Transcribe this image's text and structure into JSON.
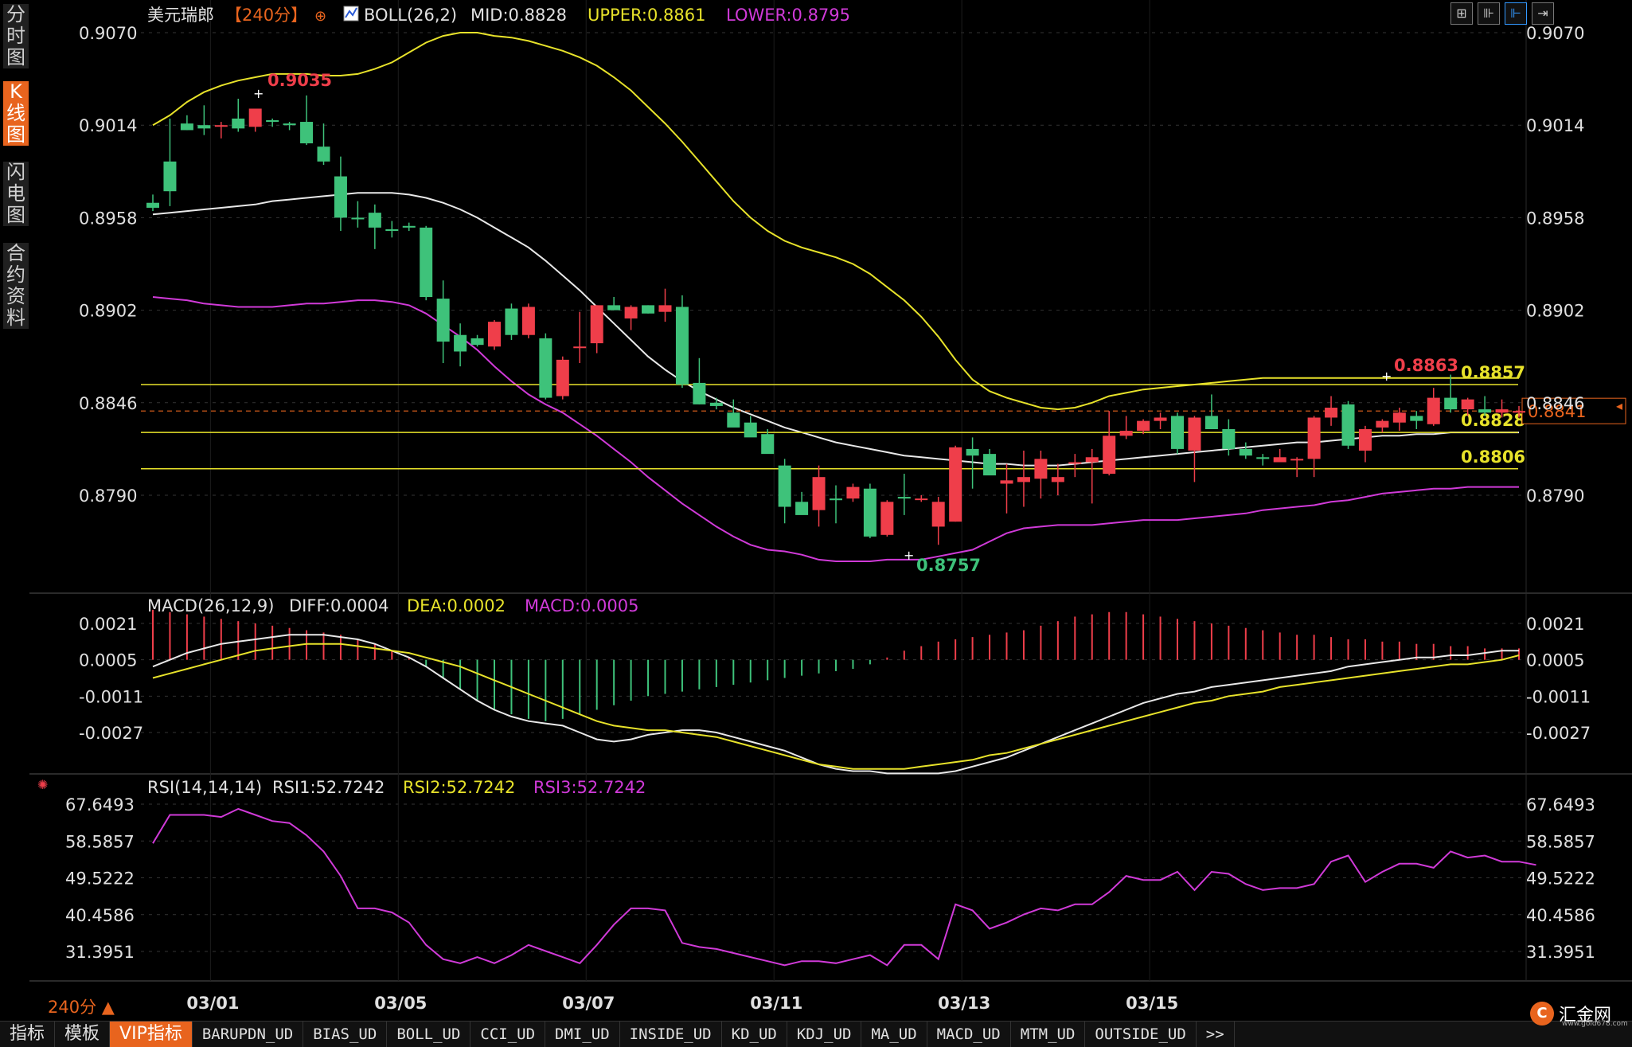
{
  "sidebar": {
    "tabs": [
      {
        "label": "分\n时\n图",
        "active": false
      },
      {
        "label": "K\n线\n图",
        "active": true
      },
      {
        "label": "闪\n电\n图",
        "active": false
      },
      {
        "label": "合\n约\n资\n料",
        "active": false
      }
    ]
  },
  "header": {
    "symbol": "美元瑞郎",
    "period": "【240分】",
    "indicator_name": "BOLL(26,2)",
    "mid": "MID:0.8828",
    "upper": "UPPER:0.8861",
    "lower": "LOWER:0.8795"
  },
  "price_axis": {
    "left": [
      "0.9070",
      "0.9014",
      "0.8958",
      "0.8902",
      "0.8846",
      "0.8790"
    ],
    "right": [
      "0.9070",
      "0.9014",
      "0.8958",
      "0.8902",
      "0.8846",
      "0.8790"
    ],
    "values": [
      0.907,
      0.9014,
      0.8958,
      0.8902,
      0.8846,
      0.879
    ]
  },
  "price_annotations": {
    "high": "0.9035",
    "low": "0.8757",
    "recent_high": "0.8863",
    "current_tag": "0.8841",
    "levels": [
      {
        "label": "0.8857",
        "value": 0.8857
      },
      {
        "label": "0.8828",
        "value": 0.8828
      },
      {
        "label": "0.8806",
        "value": 0.8806
      }
    ]
  },
  "macd": {
    "name": "MACD(26,12,9)",
    "diff": "DIFF:0.0004",
    "dea": "DEA:0.0002",
    "macd": "MACD:0.0005",
    "axis": [
      "0.0021",
      "0.0005",
      "-0.0011",
      "-0.0027"
    ],
    "axis_values": [
      0.0021,
      0.0005,
      -0.0011,
      -0.0027
    ]
  },
  "rsi": {
    "name": "RSI(14,14,14)",
    "rsi1": "RSI1:52.7242",
    "rsi2": "RSI2:52.7242",
    "rsi3": "RSI3:52.7242",
    "axis": [
      "67.6493",
      "58.5857",
      "49.5222",
      "40.4586",
      "31.3951"
    ],
    "axis_values": [
      67.6493,
      58.5857,
      49.5222,
      40.4586,
      31.3951
    ]
  },
  "x_axis": {
    "labels": [
      "03/01",
      "03/05",
      "03/07",
      "03/11",
      "03/13",
      "03/15"
    ],
    "period_selector": "240分 ▲"
  },
  "bottom_tabs": [
    {
      "label": "指标",
      "style": "cn"
    },
    {
      "label": "模板",
      "style": "cn"
    },
    {
      "label": "VIP指标",
      "style": "vip"
    },
    {
      "label": "BARUPDN_UD",
      "style": "mono"
    },
    {
      "label": "BIAS_UD",
      "style": "mono"
    },
    {
      "label": "BOLL_UD",
      "style": "mono"
    },
    {
      "label": "CCI_UD",
      "style": "mono"
    },
    {
      "label": "DMI_UD",
      "style": "mono"
    },
    {
      "label": "INSIDE_UD",
      "style": "mono"
    },
    {
      "label": "KD_UD",
      "style": "mono"
    },
    {
      "label": "KDJ_UD",
      "style": "mono"
    },
    {
      "label": "MA_UD",
      "style": "mono"
    },
    {
      "label": "MACD_UD",
      "style": "mono"
    },
    {
      "label": "MTM_UD",
      "style": "mono"
    },
    {
      "label": "OUTSIDE_UD",
      "style": "mono"
    },
    {
      "label": ">>",
      "style": "mono"
    }
  ],
  "logo": {
    "text": "汇金网",
    "url": "www.gold678.com"
  },
  "colors": {
    "up": "#ef3e4a",
    "down": "#3ec27a",
    "mid": "#e8e8e8",
    "upper": "#e7e22a",
    "lower": "#d03ad8",
    "level": "#e7e22a",
    "accent": "#e8641e"
  },
  "candles": [
    [
      0.8967,
      0.8972,
      0.8964,
      0.8962
    ],
    [
      0.8992,
      0.9018,
      0.8974,
      0.8965
    ],
    [
      0.9015,
      0.902,
      0.9011,
      0.9011
    ],
    [
      0.9014,
      0.9026,
      0.9012,
      0.9008
    ],
    [
      0.9014,
      0.9016,
      0.9014,
      0.9006
    ],
    [
      0.9018,
      0.903,
      0.9012,
      0.901
    ],
    [
      0.9013,
      0.902,
      0.9024,
      0.901
    ],
    [
      0.9017,
      0.9018,
      0.9016,
      0.9013
    ],
    [
      0.9015,
      0.9016,
      0.9014,
      0.9011
    ],
    [
      0.9016,
      0.9032,
      0.9003,
      0.9002
    ],
    [
      0.9001,
      0.9015,
      0.8992,
      0.899
    ],
    [
      0.8983,
      0.8995,
      0.8958,
      0.895
    ],
    [
      0.8958,
      0.8968,
      0.8957,
      0.8952
    ],
    [
      0.8961,
      0.8966,
      0.8952,
      0.8939
    ],
    [
      0.8951,
      0.8956,
      0.895,
      0.8946
    ],
    [
      0.8953,
      0.8955,
      0.8952,
      0.895
    ],
    [
      0.8952,
      0.8953,
      0.891,
      0.8908
    ],
    [
      0.8909,
      0.892,
      0.8883,
      0.887
    ],
    [
      0.8887,
      0.8894,
      0.8877,
      0.8868
    ],
    [
      0.8885,
      0.8887,
      0.8881,
      0.888
    ],
    [
      0.888,
      0.8896,
      0.8895,
      0.8878
    ],
    [
      0.8903,
      0.8906,
      0.8887,
      0.8884
    ],
    [
      0.8887,
      0.8906,
      0.8904,
      0.8885
    ],
    [
      0.8885,
      0.8888,
      0.8849,
      0.8848
    ],
    [
      0.885,
      0.8874,
      0.8872,
      0.8848
    ],
    [
      0.888,
      0.8901,
      0.888,
      0.887
    ],
    [
      0.8882,
      0.8905,
      0.8905,
      0.8876
    ],
    [
      0.8905,
      0.891,
      0.8902,
      0.8902
    ],
    [
      0.8897,
      0.8905,
      0.8904,
      0.889
    ],
    [
      0.8905,
      0.8905,
      0.89,
      0.89
    ],
    [
      0.8901,
      0.8915,
      0.8905,
      0.8895
    ],
    [
      0.8904,
      0.8911,
      0.8857,
      0.8855
    ],
    [
      0.8858,
      0.8873,
      0.8845,
      0.8845
    ],
    [
      0.8846,
      0.8849,
      0.8844,
      0.8842
    ],
    [
      0.884,
      0.8848,
      0.8831,
      0.8832
    ],
    [
      0.8834,
      0.8838,
      0.8825,
      0.8829
    ],
    [
      0.8827,
      0.883,
      0.8815,
      0.8816
    ],
    [
      0.8808,
      0.8812,
      0.8783,
      0.8773
    ],
    [
      0.8786,
      0.8792,
      0.8778,
      0.878
    ],
    [
      0.8781,
      0.8808,
      0.8801,
      0.8771
    ],
    [
      0.8788,
      0.8796,
      0.8787,
      0.8773
    ],
    [
      0.8788,
      0.8797,
      0.8795,
      0.8786
    ],
    [
      0.8794,
      0.8797,
      0.8765,
      0.8764
    ],
    [
      0.8766,
      0.8787,
      0.8786,
      0.8765
    ],
    [
      0.8789,
      0.8803,
      0.8788,
      0.8778
    ],
    [
      0.8788,
      0.879,
      0.8788,
      0.8786
    ],
    [
      0.8771,
      0.8789,
      0.8786,
      0.876
    ],
    [
      0.8774,
      0.882,
      0.8819,
      0.8774
    ],
    [
      0.8818,
      0.8825,
      0.8814,
      0.8794
    ],
    [
      0.8815,
      0.8818,
      0.8802,
      0.8812
    ],
    [
      0.8797,
      0.8809,
      0.8799,
      0.8779
    ],
    [
      0.8798,
      0.8817,
      0.8801,
      0.8783
    ],
    [
      0.88,
      0.8817,
      0.8812,
      0.8788
    ],
    [
      0.8798,
      0.8809,
      0.8801,
      0.879
    ],
    [
      0.881,
      0.8815,
      0.881,
      0.8801
    ],
    [
      0.881,
      0.8818,
      0.8813,
      0.8785
    ],
    [
      0.8803,
      0.8841,
      0.8826,
      0.8802
    ],
    [
      0.8826,
      0.8838,
      0.8829,
      0.8824
    ],
    [
      0.8829,
      0.8836,
      0.8835,
      0.8827
    ],
    [
      0.8835,
      0.884,
      0.8837,
      0.883
    ],
    [
      0.8838,
      0.884,
      0.8818,
      0.8815
    ],
    [
      0.8817,
      0.8838,
      0.8837,
      0.8798
    ],
    [
      0.8838,
      0.8851,
      0.883,
      0.883
    ],
    [
      0.883,
      0.8836,
      0.8818,
      0.8814
    ],
    [
      0.8818,
      0.8822,
      0.8814,
      0.8812
    ],
    [
      0.8813,
      0.8815,
      0.8812,
      0.8808
    ],
    [
      0.881,
      0.8818,
      0.8813,
      0.881
    ],
    [
      0.8812,
      0.8813,
      0.8812,
      0.8801
    ],
    [
      0.8812,
      0.8838,
      0.8837,
      0.8801
    ],
    [
      0.8837,
      0.885,
      0.8843,
      0.8832
    ],
    [
      0.8845,
      0.8847,
      0.882,
      0.8818
    ],
    [
      0.8817,
      0.8832,
      0.883,
      0.881
    ],
    [
      0.8831,
      0.8836,
      0.8835,
      0.8828
    ],
    [
      0.8834,
      0.8843,
      0.884,
      0.8829
    ],
    [
      0.8838,
      0.8841,
      0.8835,
      0.883
    ],
    [
      0.8833,
      0.8855,
      0.8849,
      0.8832
    ],
    [
      0.8849,
      0.8863,
      0.8842,
      0.884
    ],
    [
      0.8842,
      0.8849,
      0.8848,
      0.8838
    ],
    [
      0.8842,
      0.885,
      0.884,
      0.8838
    ],
    [
      0.884,
      0.8848,
      0.8842,
      0.8837
    ],
    [
      0.884,
      0.8844,
      0.8841,
      0.8837
    ]
  ],
  "boll_mid": [
    0.896,
    0.8961,
    0.8962,
    0.8963,
    0.8964,
    0.8965,
    0.8966,
    0.8968,
    0.8969,
    0.897,
    0.8971,
    0.8972,
    0.8973,
    0.8973,
    0.8973,
    0.8972,
    0.897,
    0.8967,
    0.8963,
    0.8958,
    0.8952,
    0.8946,
    0.894,
    0.8932,
    0.8923,
    0.8914,
    0.8904,
    0.8894,
    0.8884,
    0.8874,
    0.8866,
    0.8859,
    0.8853,
    0.8848,
    0.8843,
    0.8839,
    0.8835,
    0.8831,
    0.8828,
    0.8825,
    0.8822,
    0.882,
    0.8818,
    0.8816,
    0.8814,
    0.8813,
    0.8812,
    0.8811,
    0.881,
    0.8809,
    0.8809,
    0.8808,
    0.8808,
    0.8808,
    0.8809,
    0.881,
    0.8811,
    0.8812,
    0.8813,
    0.8814,
    0.8815,
    0.8816,
    0.8817,
    0.8818,
    0.8819,
    0.882,
    0.8821,
    0.8822,
    0.8822,
    0.8823,
    0.8824,
    0.8825,
    0.8826,
    0.8826,
    0.8827,
    0.8827,
    0.8828,
    0.8828,
    0.8828,
    0.8828,
    0.8828
  ],
  "boll_upper": [
    0.9014,
    0.902,
    0.9028,
    0.9034,
    0.9038,
    0.9041,
    0.9043,
    0.9045,
    0.9045,
    0.9045,
    0.9044,
    0.9044,
    0.9045,
    0.9048,
    0.9052,
    0.9058,
    0.9064,
    0.9068,
    0.907,
    0.907,
    0.9068,
    0.9067,
    0.9065,
    0.9062,
    0.9059,
    0.9055,
    0.905,
    0.9043,
    0.9035,
    0.9025,
    0.9015,
    0.9004,
    0.8992,
    0.898,
    0.8968,
    0.8958,
    0.895,
    0.8944,
    0.894,
    0.8937,
    0.8934,
    0.893,
    0.8924,
    0.8916,
    0.8908,
    0.8898,
    0.8886,
    0.8872,
    0.886,
    0.8853,
    0.8849,
    0.8846,
    0.8843,
    0.8842,
    0.8843,
    0.8846,
    0.885,
    0.8852,
    0.8854,
    0.8855,
    0.8856,
    0.8857,
    0.8858,
    0.8859,
    0.886,
    0.8861,
    0.8861,
    0.8861,
    0.8861,
    0.8861,
    0.8861,
    0.8861,
    0.8861,
    0.8861,
    0.8861,
    0.8861,
    0.8861,
    0.8861,
    0.8861,
    0.8861,
    0.8861
  ],
  "boll_lower": [
    0.891,
    0.8909,
    0.8908,
    0.8906,
    0.8905,
    0.8904,
    0.8904,
    0.8904,
    0.8905,
    0.8906,
    0.8906,
    0.8907,
    0.8908,
    0.8908,
    0.8907,
    0.8905,
    0.89,
    0.8893,
    0.8886,
    0.8878,
    0.8868,
    0.8859,
    0.8851,
    0.8845,
    0.884,
    0.8833,
    0.8826,
    0.8818,
    0.881,
    0.8801,
    0.8793,
    0.8785,
    0.8778,
    0.8771,
    0.8765,
    0.876,
    0.8757,
    0.8756,
    0.8754,
    0.8751,
    0.875,
    0.875,
    0.875,
    0.8751,
    0.8751,
    0.8751,
    0.8753,
    0.8755,
    0.8757,
    0.8762,
    0.8767,
    0.877,
    0.8771,
    0.8772,
    0.8772,
    0.8772,
    0.8773,
    0.8774,
    0.8775,
    0.8775,
    0.8775,
    0.8776,
    0.8777,
    0.8778,
    0.8779,
    0.8781,
    0.8782,
    0.8783,
    0.8784,
    0.8786,
    0.8787,
    0.8789,
    0.8791,
    0.8792,
    0.8793,
    0.8794,
    0.8794,
    0.8795,
    0.8795,
    0.8795,
    0.8795
  ],
  "macd_hist": [
    0.0022,
    0.0021,
    0.002,
    0.0019,
    0.0018,
    0.0017,
    0.0016,
    0.0015,
    0.0014,
    0.0013,
    0.0012,
    0.0011,
    0.0009,
    0.0007,
    0.0004,
    0.0001,
    -0.0003,
    -0.0008,
    -0.0013,
    -0.0018,
    -0.0022,
    -0.0024,
    -0.0026,
    -0.0027,
    -0.0026,
    -0.0024,
    -0.0022,
    -0.002,
    -0.0018,
    -0.0016,
    -0.0015,
    -0.0014,
    -0.0013,
    -0.0012,
    -0.0011,
    -0.001,
    -0.0009,
    -0.0008,
    -0.0007,
    -0.0006,
    -0.0005,
    -0.0004,
    -0.0002,
    0.0001,
    0.0004,
    0.0006,
    0.0008,
    0.0009,
    0.001,
    0.0011,
    0.0012,
    0.0013,
    0.0015,
    0.0017,
    0.0019,
    0.002,
    0.0021,
    0.0021,
    0.002,
    0.0019,
    0.0018,
    0.0017,
    0.0016,
    0.0015,
    0.0014,
    0.0013,
    0.0012,
    0.0011,
    0.0011,
    0.001,
    0.0009,
    0.0009,
    0.0008,
    0.0008,
    0.0007,
    0.0007,
    0.0006,
    0.0006,
    0.0005,
    0.0005,
    0.0005
  ],
  "macd_diff": [
    -0.0003,
    0.0,
    0.0003,
    0.0005,
    0.0007,
    0.0008,
    0.0009,
    0.001,
    0.0011,
    0.0011,
    0.0011,
    0.001,
    0.0009,
    0.0007,
    0.0004,
    0.0001,
    -0.0003,
    -0.0008,
    -0.0013,
    -0.0018,
    -0.0022,
    -0.0025,
    -0.0027,
    -0.0028,
    -0.0029,
    -0.0032,
    -0.0035,
    -0.0036,
    -0.0035,
    -0.0033,
    -0.0032,
    -0.0031,
    -0.0031,
    -0.0032,
    -0.0034,
    -0.0036,
    -0.0038,
    -0.004,
    -0.0043,
    -0.0046,
    -0.0048,
    -0.0049,
    -0.0049,
    -0.005,
    -0.005,
    -0.005,
    -0.005,
    -0.0049,
    -0.0047,
    -0.0045,
    -0.0043,
    -0.004,
    -0.0037,
    -0.0034,
    -0.0031,
    -0.0028,
    -0.0025,
    -0.0022,
    -0.0019,
    -0.0017,
    -0.0015,
    -0.0014,
    -0.0012,
    -0.0011,
    -0.001,
    -0.0009,
    -0.0008,
    -0.0007,
    -0.0006,
    -0.0005,
    -0.0003,
    -0.0002,
    -0.0001,
    0.0,
    0.0001,
    0.0001,
    0.0002,
    0.0002,
    0.0003,
    0.0004,
    0.0004
  ],
  "macd_dea": [
    -0.0008,
    -0.0006,
    -0.0004,
    -0.0002,
    0.0,
    0.0002,
    0.0004,
    0.0005,
    0.0006,
    0.0007,
    0.0007,
    0.0007,
    0.0006,
    0.0005,
    0.0004,
    0.0003,
    0.0001,
    -0.0001,
    -0.0003,
    -0.0006,
    -0.0009,
    -0.0012,
    -0.0015,
    -0.0018,
    -0.0021,
    -0.0024,
    -0.0027,
    -0.0029,
    -0.003,
    -0.0031,
    -0.0031,
    -0.0032,
    -0.0033,
    -0.0034,
    -0.0036,
    -0.0038,
    -0.004,
    -0.0042,
    -0.0044,
    -0.0046,
    -0.0047,
    -0.0048,
    -0.0048,
    -0.0048,
    -0.0048,
    -0.0047,
    -0.0046,
    -0.0045,
    -0.0044,
    -0.0042,
    -0.0041,
    -0.0039,
    -0.0037,
    -0.0035,
    -0.0033,
    -0.0031,
    -0.0029,
    -0.0027,
    -0.0025,
    -0.0023,
    -0.0021,
    -0.0019,
    -0.0018,
    -0.0016,
    -0.0015,
    -0.0014,
    -0.0012,
    -0.0011,
    -0.001,
    -0.0009,
    -0.0008,
    -0.0007,
    -0.0006,
    -0.0005,
    -0.0004,
    -0.0003,
    -0.0002,
    -0.0002,
    -0.0001,
    0.0,
    0.0002
  ],
  "rsi_values": [
    58.0,
    65.0,
    65.0,
    65.0,
    64.5,
    66.5,
    65.0,
    63.5,
    63.0,
    60.0,
    56.0,
    50.0,
    42.0,
    42.0,
    41.0,
    38.5,
    33.0,
    29.5,
    28.5,
    30.0,
    28.5,
    30.5,
    33.0,
    31.5,
    30.0,
    28.5,
    33.0,
    38.0,
    42.0,
    42.0,
    41.5,
    33.5,
    32.5,
    32.0,
    31.0,
    30.0,
    29.0,
    28.0,
    29.0,
    29.0,
    28.5,
    29.5,
    30.5,
    28.0,
    33.0,
    33.0,
    29.5,
    43.0,
    41.5,
    37.0,
    38.5,
    40.5,
    42.0,
    41.5,
    43.0,
    43.0,
    46.0,
    50.0,
    49.0,
    49.0,
    51.0,
    46.5,
    51.0,
    50.5,
    48.0,
    46.5,
    47.0,
    47.0,
    48.0,
    53.5,
    55.0,
    48.5,
    51.0,
    53.0,
    53.0,
    52.0,
    56.0,
    54.5,
    55.0,
    53.5,
    53.5,
    52.7
  ]
}
